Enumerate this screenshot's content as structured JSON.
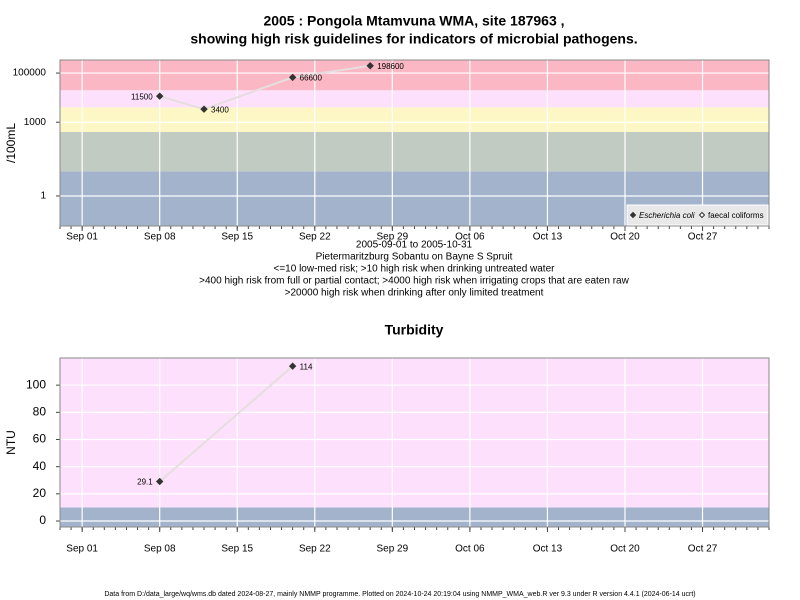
{
  "chart_data": [
    {
      "type": "line",
      "title": "2005 : Pongola Mtamvuna WMA, site 187963 ,",
      "subtitle": "showing high risk guidelines for indicators of microbial pathogens.",
      "ylabel": "/100mL",
      "log_y": true,
      "xlim": [
        "Aug 30",
        "Nov 02"
      ],
      "xticks": [
        "Sep 01",
        "Sep 08",
        "Sep 15",
        "Sep 22",
        "Sep 29",
        "Oct 06",
        "Oct 13",
        "Oct 20",
        "Oct 27"
      ],
      "ylim": [
        0.06,
        340000
      ],
      "yticks": [
        1,
        1000,
        100000
      ],
      "band_breaks": [
        10,
        400,
        4000,
        20000
      ],
      "band_colors": [
        "#a3b3cc",
        "#c2cbc1",
        "#fdf7c6",
        "#fde0fb",
        "#fbb8c4"
      ],
      "series": [
        {
          "name": "Escherichia coli",
          "color": "#333333",
          "marker": "filled",
          "x": [
            "Sep 08",
            "Sep 12",
            "Sep 20",
            "Sep 27"
          ],
          "values": [
            11500,
            3400,
            66600,
            198600
          ]
        },
        {
          "name": "faecal coliforms",
          "color": "#333333",
          "marker": "open",
          "x": [],
          "values": []
        }
      ],
      "legend": "bottom-right",
      "notes": [
        "2005-09-01 to 2005-10-31",
        "Pietermaritzburg Sobantu on Bayne S Spruit",
        "<=10 low-med risk; >10 high risk when drinking untreated water",
        ">400 high risk from full or partial contact; >4000 high risk when irrigating crops that are eaten raw",
        ">20000 high risk when drinking after only limited treatment"
      ]
    },
    {
      "type": "line",
      "title": "Turbidity",
      "ylabel": "NTU",
      "log_y": false,
      "xlim": [
        "Aug 30",
        "Nov 02"
      ],
      "xticks": [
        "Sep 01",
        "Sep 08",
        "Sep 15",
        "Sep 22",
        "Sep 29",
        "Oct 06",
        "Oct 13",
        "Oct 20",
        "Oct 27"
      ],
      "ylim": [
        -4.4,
        120
      ],
      "yticks": [
        0,
        20,
        40,
        60,
        80,
        100
      ],
      "band_breaks": [
        10
      ],
      "band_colors": [
        "#a3b3cc",
        "#fde0fb"
      ],
      "series": [
        {
          "name": "Turbidity",
          "color": "#333333",
          "marker": "filled",
          "x": [
            "Sep 08",
            "Sep 20"
          ],
          "values": [
            29.1,
            114
          ]
        }
      ]
    }
  ],
  "footer": "Data from D:/data_large/wq/wms.db dated 2024-08-27, mainly NMMP programme. Plotted on 2024-10-24 20:19:04 using NMMP_WMA_web.R ver 9.3 under R version 4.4.1 (2024-06-14 ucrt)"
}
